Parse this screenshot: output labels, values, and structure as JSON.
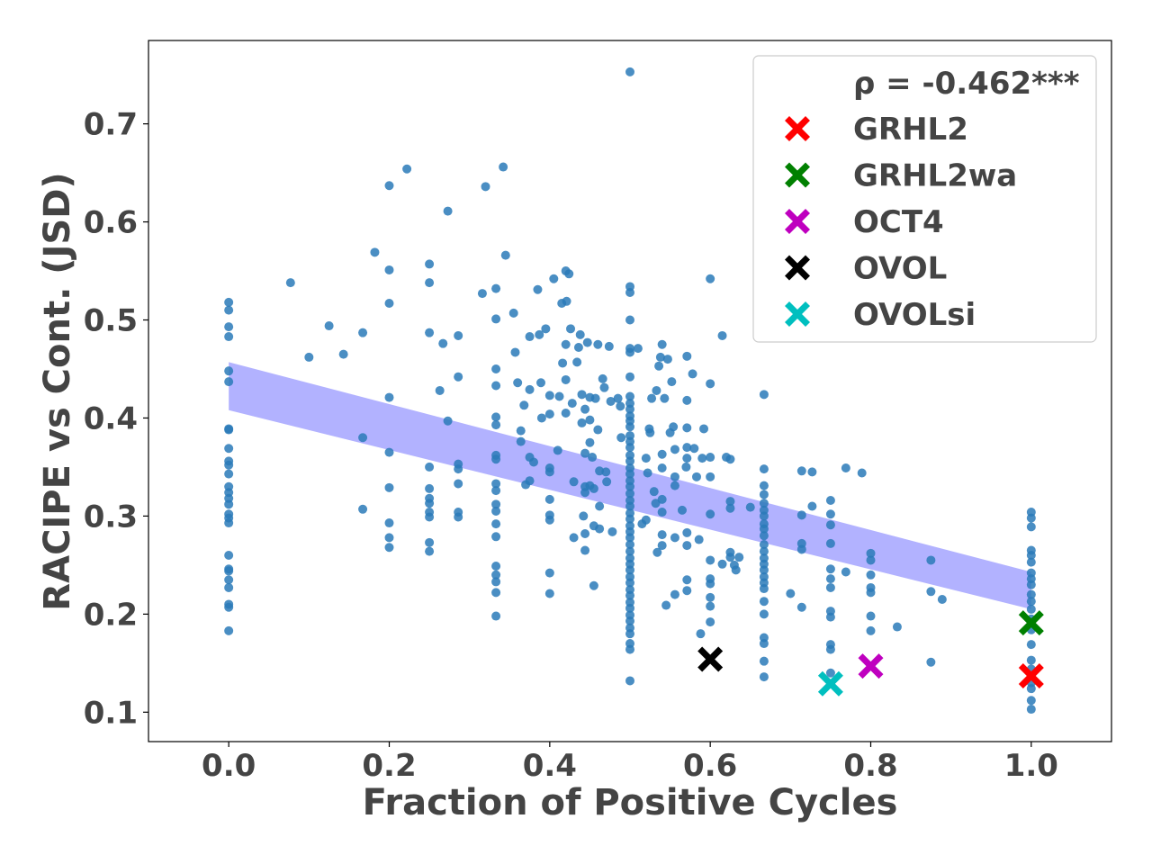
{
  "chart_data": {
    "type": "scatter",
    "xlabel": "Fraction of Positive Cycles",
    "ylabel": "RACIPE vs Cont. (JSD)",
    "xlim": [
      -0.1,
      1.1
    ],
    "ylim": [
      0.07,
      0.785
    ],
    "xticks": [
      "0.0",
      "0.2",
      "0.4",
      "0.6",
      "0.8",
      "1.0"
    ],
    "yticks": [
      "0.1",
      "0.2",
      "0.3",
      "0.4",
      "0.5",
      "0.6",
      "0.7"
    ],
    "grid": false,
    "legend_position": "top-right",
    "annotation": "ρ = -0.462***",
    "scatter_color": "#2a7ab8",
    "band_color": "#aaaaff",
    "regression_band": {
      "x": [
        0.0,
        1.0
      ],
      "lower": [
        0.408,
        0.205
      ],
      "upper": [
        0.457,
        0.243
      ]
    },
    "points": [
      [
        0.0,
        0.518
      ],
      [
        0.0,
        0.51
      ],
      [
        0.0,
        0.493
      ],
      [
        0.0,
        0.483
      ],
      [
        0.0,
        0.448
      ],
      [
        0.0,
        0.437
      ],
      [
        0.0,
        0.389
      ],
      [
        0.0,
        0.388
      ],
      [
        0.0,
        0.369
      ],
      [
        0.0,
        0.356
      ],
      [
        0.0,
        0.352
      ],
      [
        0.0,
        0.343
      ],
      [
        0.0,
        0.33
      ],
      [
        0.0,
        0.324
      ],
      [
        0.0,
        0.318
      ],
      [
        0.0,
        0.312
      ],
      [
        0.0,
        0.302
      ],
      [
        0.0,
        0.298
      ],
      [
        0.0,
        0.293
      ],
      [
        0.0,
        0.26
      ],
      [
        0.0,
        0.246
      ],
      [
        0.0,
        0.244
      ],
      [
        0.0,
        0.235
      ],
      [
        0.0,
        0.227
      ],
      [
        0.0,
        0.21
      ],
      [
        0.0,
        0.207
      ],
      [
        0.0,
        0.183
      ],
      [
        0.077,
        0.538
      ],
      [
        0.1,
        0.462
      ],
      [
        0.125,
        0.494
      ],
      [
        0.143,
        0.465
      ],
      [
        0.167,
        0.487
      ],
      [
        0.167,
        0.38
      ],
      [
        0.167,
        0.307
      ],
      [
        0.182,
        0.569
      ],
      [
        0.2,
        0.637
      ],
      [
        0.2,
        0.551
      ],
      [
        0.2,
        0.517
      ],
      [
        0.2,
        0.421
      ],
      [
        0.2,
        0.365
      ],
      [
        0.2,
        0.329
      ],
      [
        0.2,
        0.293
      ],
      [
        0.2,
        0.278
      ],
      [
        0.2,
        0.268
      ],
      [
        0.222,
        0.654
      ],
      [
        0.25,
        0.557
      ],
      [
        0.25,
        0.538
      ],
      [
        0.25,
        0.487
      ],
      [
        0.25,
        0.35
      ],
      [
        0.25,
        0.328
      ],
      [
        0.25,
        0.318
      ],
      [
        0.25,
        0.313
      ],
      [
        0.25,
        0.304
      ],
      [
        0.25,
        0.299
      ],
      [
        0.25,
        0.273
      ],
      [
        0.25,
        0.264
      ],
      [
        0.263,
        0.428
      ],
      [
        0.267,
        0.476
      ],
      [
        0.273,
        0.611
      ],
      [
        0.273,
        0.397
      ],
      [
        0.286,
        0.484
      ],
      [
        0.286,
        0.442
      ],
      [
        0.286,
        0.353
      ],
      [
        0.286,
        0.348
      ],
      [
        0.286,
        0.333
      ],
      [
        0.286,
        0.304
      ],
      [
        0.286,
        0.299
      ],
      [
        0.316,
        0.527
      ],
      [
        0.32,
        0.636
      ],
      [
        0.333,
        0.532
      ],
      [
        0.333,
        0.501
      ],
      [
        0.333,
        0.45
      ],
      [
        0.333,
        0.433
      ],
      [
        0.333,
        0.401
      ],
      [
        0.333,
        0.393
      ],
      [
        0.333,
        0.362
      ],
      [
        0.333,
        0.358
      ],
      [
        0.333,
        0.333
      ],
      [
        0.333,
        0.326
      ],
      [
        0.333,
        0.312
      ],
      [
        0.333,
        0.305
      ],
      [
        0.333,
        0.292
      ],
      [
        0.333,
        0.279
      ],
      [
        0.333,
        0.249
      ],
      [
        0.333,
        0.24
      ],
      [
        0.333,
        0.233
      ],
      [
        0.333,
        0.222
      ],
      [
        0.333,
        0.198
      ],
      [
        0.342,
        0.656
      ],
      [
        0.345,
        0.566
      ],
      [
        0.355,
        0.507
      ],
      [
        0.357,
        0.467
      ],
      [
        0.36,
        0.436
      ],
      [
        0.364,
        0.376
      ],
      [
        0.364,
        0.387
      ],
      [
        0.368,
        0.413
      ],
      [
        0.37,
        0.332
      ],
      [
        0.375,
        0.483
      ],
      [
        0.375,
        0.429
      ],
      [
        0.375,
        0.36
      ],
      [
        0.375,
        0.336
      ],
      [
        0.38,
        0.355
      ],
      [
        0.385,
        0.531
      ],
      [
        0.387,
        0.485
      ],
      [
        0.389,
        0.436
      ],
      [
        0.39,
        0.4
      ],
      [
        0.395,
        0.491
      ],
      [
        0.4,
        0.423
      ],
      [
        0.4,
        0.404
      ],
      [
        0.4,
        0.349
      ],
      [
        0.4,
        0.345
      ],
      [
        0.4,
        0.317
      ],
      [
        0.4,
        0.301
      ],
      [
        0.4,
        0.296
      ],
      [
        0.4,
        0.242
      ],
      [
        0.4,
        0.221
      ],
      [
        0.405,
        0.542
      ],
      [
        0.41,
        0.367
      ],
      [
        0.412,
        0.422
      ],
      [
        0.415,
        0.517
      ],
      [
        0.416,
        0.456
      ],
      [
        0.42,
        0.55
      ],
      [
        0.42,
        0.475
      ],
      [
        0.42,
        0.439
      ],
      [
        0.42,
        0.405
      ],
      [
        0.421,
        0.519
      ],
      [
        0.424,
        0.547
      ],
      [
        0.426,
        0.491
      ],
      [
        0.428,
        0.415
      ],
      [
        0.43,
        0.335
      ],
      [
        0.43,
        0.278
      ],
      [
        0.434,
        0.457
      ],
      [
        0.436,
        0.472
      ],
      [
        0.438,
        0.485
      ],
      [
        0.44,
        0.424
      ],
      [
        0.44,
        0.395
      ],
      [
        0.442,
        0.3
      ],
      [
        0.444,
        0.409
      ],
      [
        0.444,
        0.364
      ],
      [
        0.444,
        0.33
      ],
      [
        0.444,
        0.324
      ],
      [
        0.444,
        0.282
      ],
      [
        0.444,
        0.265
      ],
      [
        0.447,
        0.477
      ],
      [
        0.45,
        0.421
      ],
      [
        0.45,
        0.398
      ],
      [
        0.45,
        0.375
      ],
      [
        0.45,
        0.331
      ],
      [
        0.453,
        0.36
      ],
      [
        0.455,
        0.328
      ],
      [
        0.455,
        0.29
      ],
      [
        0.455,
        0.229
      ],
      [
        0.457,
        0.42
      ],
      [
        0.46,
        0.475
      ],
      [
        0.46,
        0.388
      ],
      [
        0.462,
        0.346
      ],
      [
        0.462,
        0.31
      ],
      [
        0.462,
        0.287
      ],
      [
        0.466,
        0.44
      ],
      [
        0.468,
        0.431
      ],
      [
        0.47,
        0.345
      ],
      [
        0.471,
        0.335
      ],
      [
        0.474,
        0.473
      ],
      [
        0.476,
        0.417
      ],
      [
        0.478,
        0.284
      ],
      [
        0.485,
        0.42
      ],
      [
        0.488,
        0.412
      ],
      [
        0.489,
        0.38
      ],
      [
        0.5,
        0.753
      ],
      [
        0.5,
        0.534
      ],
      [
        0.5,
        0.528
      ],
      [
        0.5,
        0.5
      ],
      [
        0.5,
        0.471
      ],
      [
        0.5,
        0.467
      ],
      [
        0.5,
        0.442
      ],
      [
        0.5,
        0.422
      ],
      [
        0.5,
        0.415
      ],
      [
        0.5,
        0.409
      ],
      [
        0.5,
        0.402
      ],
      [
        0.5,
        0.397
      ],
      [
        0.5,
        0.391
      ],
      [
        0.5,
        0.382
      ],
      [
        0.5,
        0.376
      ],
      [
        0.5,
        0.37
      ],
      [
        0.5,
        0.362
      ],
      [
        0.5,
        0.356
      ],
      [
        0.5,
        0.349
      ],
      [
        0.5,
        0.343
      ],
      [
        0.5,
        0.336
      ],
      [
        0.5,
        0.33
      ],
      [
        0.5,
        0.323
      ],
      [
        0.5,
        0.316
      ],
      [
        0.5,
        0.31
      ],
      [
        0.5,
        0.303
      ],
      [
        0.5,
        0.297
      ],
      [
        0.5,
        0.29
      ],
      [
        0.5,
        0.284
      ],
      [
        0.5,
        0.278
      ],
      [
        0.5,
        0.271
      ],
      [
        0.5,
        0.264
      ],
      [
        0.5,
        0.257
      ],
      [
        0.5,
        0.251
      ],
      [
        0.5,
        0.245
      ],
      [
        0.5,
        0.238
      ],
      [
        0.5,
        0.232
      ],
      [
        0.5,
        0.225
      ],
      [
        0.5,
        0.219
      ],
      [
        0.5,
        0.212
      ],
      [
        0.5,
        0.206
      ],
      [
        0.5,
        0.199
      ],
      [
        0.5,
        0.193
      ],
      [
        0.5,
        0.186
      ],
      [
        0.5,
        0.18
      ],
      [
        0.5,
        0.17
      ],
      [
        0.5,
        0.164
      ],
      [
        0.5,
        0.132
      ],
      [
        0.51,
        0.471
      ],
      [
        0.515,
        0.292
      ],
      [
        0.52,
        0.359
      ],
      [
        0.52,
        0.296
      ],
      [
        0.522,
        0.344
      ],
      [
        0.524,
        0.389
      ],
      [
        0.525,
        0.385
      ],
      [
        0.527,
        0.42
      ],
      [
        0.53,
        0.325
      ],
      [
        0.532,
        0.313
      ],
      [
        0.533,
        0.428
      ],
      [
        0.534,
        0.263
      ],
      [
        0.536,
        0.453
      ],
      [
        0.538,
        0.462
      ],
      [
        0.54,
        0.475
      ],
      [
        0.54,
        0.363
      ],
      [
        0.54,
        0.349
      ],
      [
        0.54,
        0.317
      ],
      [
        0.54,
        0.304
      ],
      [
        0.54,
        0.281
      ],
      [
        0.54,
        0.27
      ],
      [
        0.543,
        0.42
      ],
      [
        0.545,
        0.209
      ],
      [
        0.547,
        0.46
      ],
      [
        0.55,
        0.385
      ],
      [
        0.552,
        0.437
      ],
      [
        0.554,
        0.391
      ],
      [
        0.556,
        0.368
      ],
      [
        0.556,
        0.34
      ],
      [
        0.556,
        0.331
      ],
      [
        0.556,
        0.278
      ],
      [
        0.556,
        0.22
      ],
      [
        0.565,
        0.306
      ],
      [
        0.57,
        0.35
      ],
      [
        0.571,
        0.463
      ],
      [
        0.571,
        0.418
      ],
      [
        0.571,
        0.39
      ],
      [
        0.571,
        0.37
      ],
      [
        0.571,
        0.359
      ],
      [
        0.571,
        0.283
      ],
      [
        0.571,
        0.27
      ],
      [
        0.571,
        0.235
      ],
      [
        0.571,
        0.224
      ],
      [
        0.578,
        0.445
      ],
      [
        0.58,
        0.369
      ],
      [
        0.583,
        0.34
      ],
      [
        0.586,
        0.276
      ],
      [
        0.588,
        0.18
      ],
      [
        0.59,
        0.359
      ],
      [
        0.592,
        0.389
      ],
      [
        0.6,
        0.542
      ],
      [
        0.6,
        0.435
      ],
      [
        0.6,
        0.36
      ],
      [
        0.6,
        0.34
      ],
      [
        0.6,
        0.302
      ],
      [
        0.6,
        0.255
      ],
      [
        0.6,
        0.236
      ],
      [
        0.6,
        0.231
      ],
      [
        0.6,
        0.217
      ],
      [
        0.6,
        0.208
      ],
      [
        0.6,
        0.192
      ],
      [
        0.615,
        0.484
      ],
      [
        0.615,
        0.251
      ],
      [
        0.62,
        0.36
      ],
      [
        0.625,
        0.358
      ],
      [
        0.625,
        0.315
      ],
      [
        0.625,
        0.308
      ],
      [
        0.625,
        0.263
      ],
      [
        0.625,
        0.258
      ],
      [
        0.63,
        0.25
      ],
      [
        0.632,
        0.245
      ],
      [
        0.636,
        0.258
      ],
      [
        0.65,
        0.309
      ],
      [
        0.667,
        0.424
      ],
      [
        0.667,
        0.348
      ],
      [
        0.667,
        0.331
      ],
      [
        0.667,
        0.322
      ],
      [
        0.667,
        0.313
      ],
      [
        0.667,
        0.306
      ],
      [
        0.667,
        0.3
      ],
      [
        0.667,
        0.292
      ],
      [
        0.667,
        0.287
      ],
      [
        0.667,
        0.28
      ],
      [
        0.667,
        0.271
      ],
      [
        0.667,
        0.264
      ],
      [
        0.667,
        0.257
      ],
      [
        0.667,
        0.251
      ],
      [
        0.667,
        0.245
      ],
      [
        0.667,
        0.238
      ],
      [
        0.667,
        0.232
      ],
      [
        0.667,
        0.226
      ],
      [
        0.667,
        0.213
      ],
      [
        0.667,
        0.2
      ],
      [
        0.667,
        0.176
      ],
      [
        0.667,
        0.17
      ],
      [
        0.667,
        0.152
      ],
      [
        0.667,
        0.136
      ],
      [
        0.7,
        0.221
      ],
      [
        0.714,
        0.346
      ],
      [
        0.714,
        0.301
      ],
      [
        0.714,
        0.272
      ],
      [
        0.714,
        0.266
      ],
      [
        0.714,
        0.207
      ],
      [
        0.727,
        0.345
      ],
      [
        0.727,
        0.31
      ],
      [
        0.75,
        0.316
      ],
      [
        0.75,
        0.302
      ],
      [
        0.75,
        0.291
      ],
      [
        0.75,
        0.272
      ],
      [
        0.75,
        0.246
      ],
      [
        0.75,
        0.236
      ],
      [
        0.75,
        0.227
      ],
      [
        0.75,
        0.203
      ],
      [
        0.75,
        0.197
      ],
      [
        0.75,
        0.169
      ],
      [
        0.75,
        0.164
      ],
      [
        0.75,
        0.14
      ],
      [
        0.769,
        0.349
      ],
      [
        0.769,
        0.243
      ],
      [
        0.789,
        0.344
      ],
      [
        0.8,
        0.262
      ],
      [
        0.8,
        0.255
      ],
      [
        0.8,
        0.24
      ],
      [
        0.8,
        0.227
      ],
      [
        0.8,
        0.222
      ],
      [
        0.8,
        0.198
      ],
      [
        0.8,
        0.183
      ],
      [
        0.833,
        0.187
      ],
      [
        0.875,
        0.255
      ],
      [
        0.875,
        0.223
      ],
      [
        0.875,
        0.151
      ],
      [
        0.889,
        0.215
      ],
      [
        1.0,
        0.304
      ],
      [
        1.0,
        0.298
      ],
      [
        1.0,
        0.289
      ],
      [
        1.0,
        0.265
      ],
      [
        1.0,
        0.26
      ],
      [
        1.0,
        0.253
      ],
      [
        1.0,
        0.242
      ],
      [
        1.0,
        0.236
      ],
      [
        1.0,
        0.23
      ],
      [
        1.0,
        0.22
      ],
      [
        1.0,
        0.213
      ],
      [
        1.0,
        0.205
      ],
      [
        1.0,
        0.195
      ],
      [
        1.0,
        0.184
      ],
      [
        1.0,
        0.169
      ],
      [
        1.0,
        0.153
      ],
      [
        1.0,
        0.144
      ],
      [
        1.0,
        0.13
      ],
      [
        1.0,
        0.124
      ],
      [
        1.0,
        0.112
      ],
      [
        1.0,
        0.103
      ]
    ],
    "highlights": [
      {
        "name": "GRHL2",
        "color": "#ff0000",
        "x": 1.0,
        "y": 0.137
      },
      {
        "name": "GRHL2wa",
        "color": "#008000",
        "x": 1.0,
        "y": 0.191
      },
      {
        "name": "OCT4",
        "color": "#bf00bf",
        "x": 0.8,
        "y": 0.147
      },
      {
        "name": "OVOL",
        "color": "#000000",
        "x": 0.6,
        "y": 0.154
      },
      {
        "name": "OVOLsi",
        "color": "#00bfbf",
        "x": 0.75,
        "y": 0.129
      }
    ]
  }
}
